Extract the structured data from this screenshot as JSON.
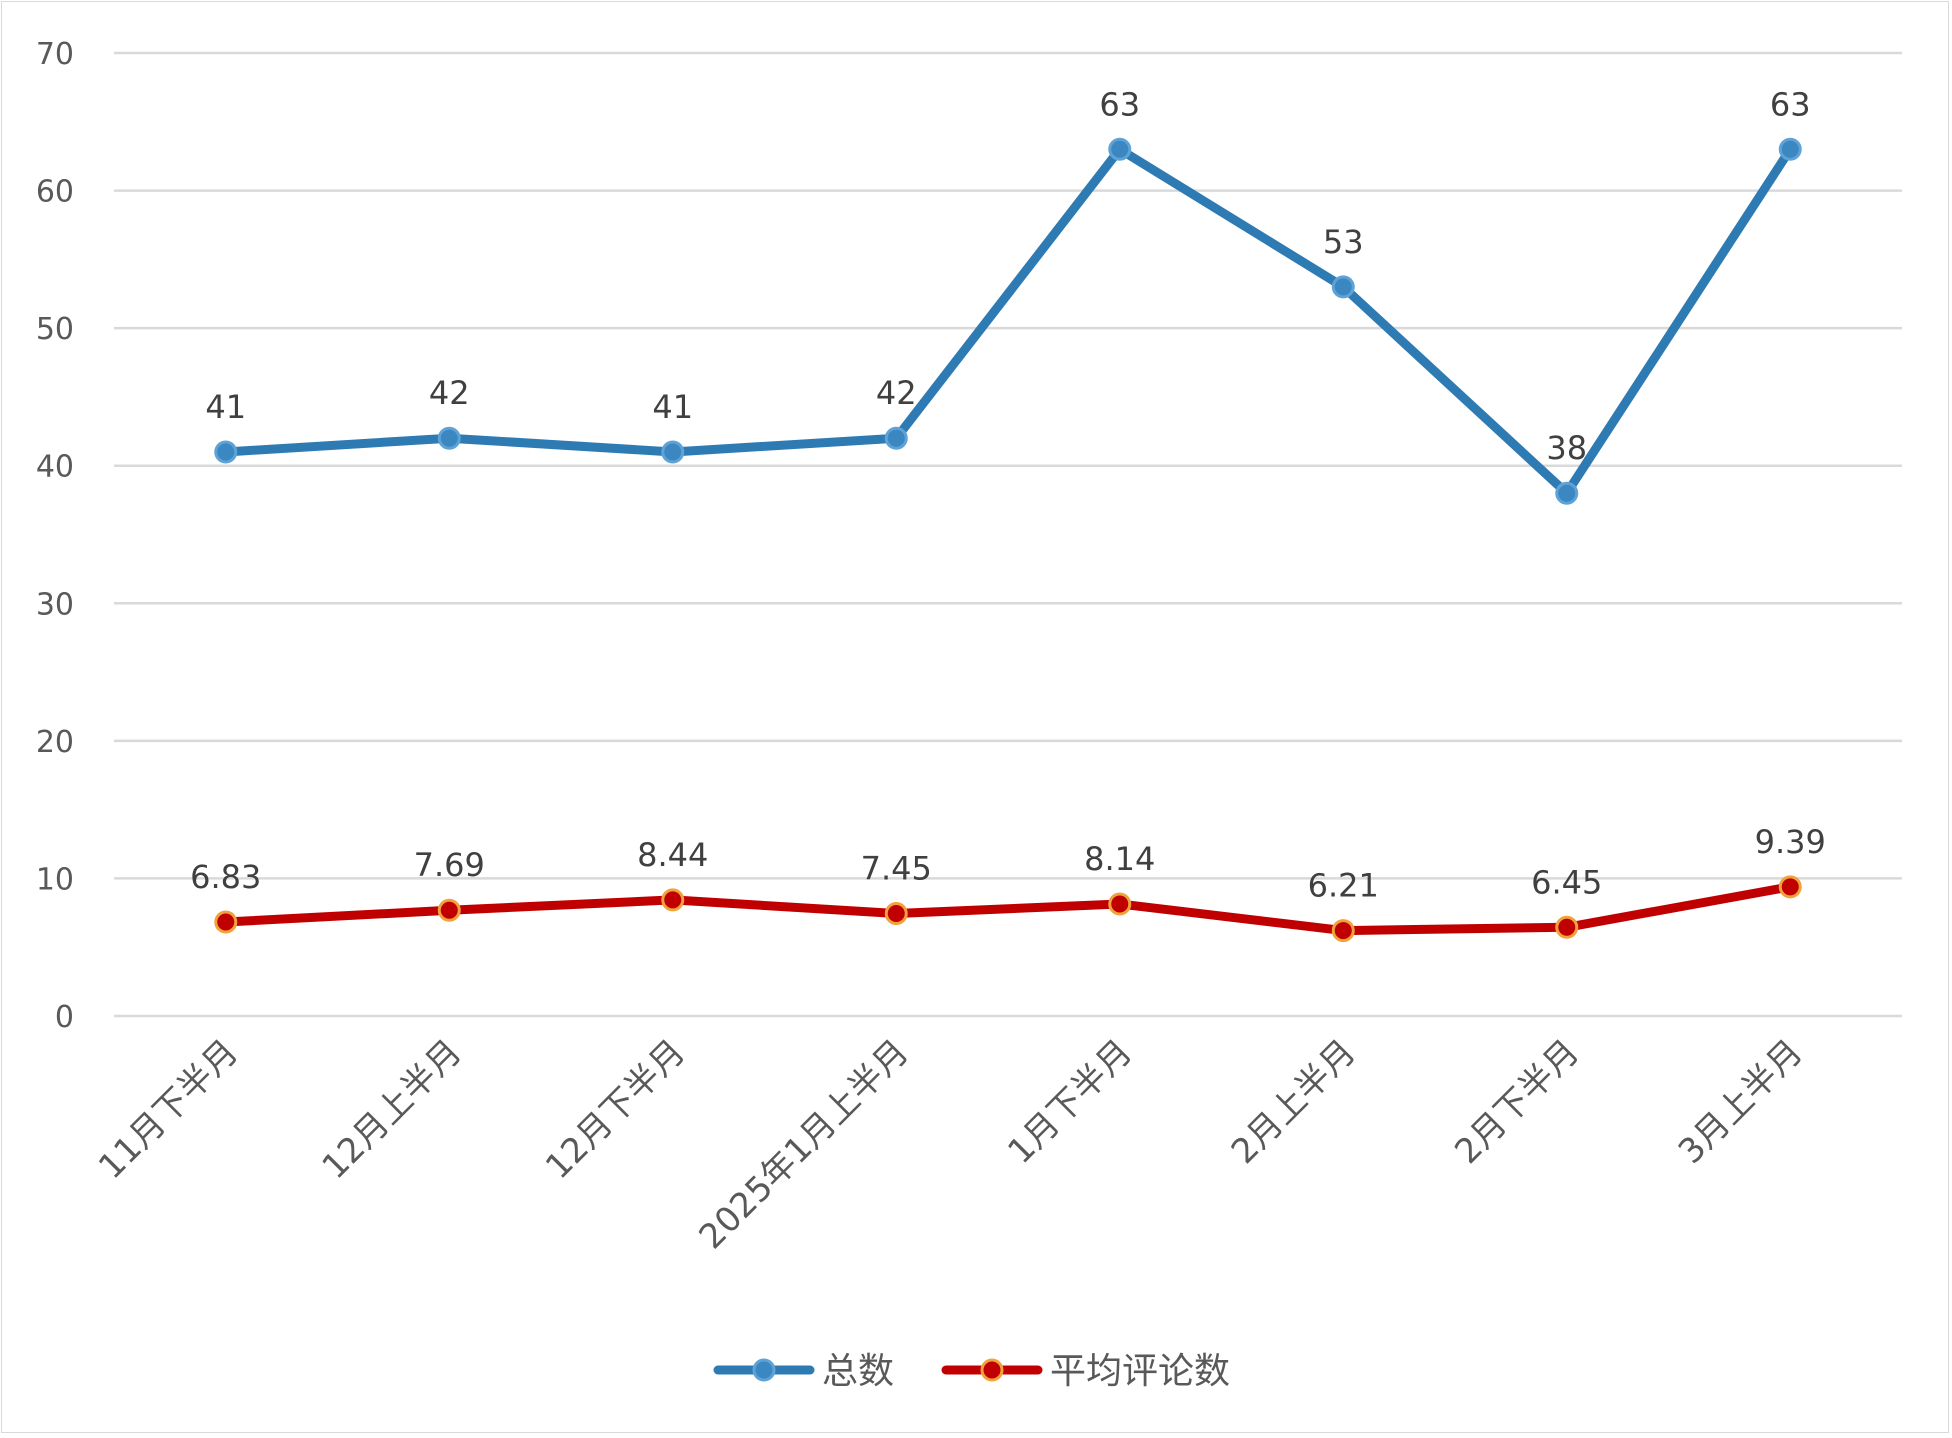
{
  "chart_data": {
    "type": "line",
    "categories": [
      "11月下半月",
      "12月上半月",
      "12月下半月",
      "2025年1月上半月",
      "1月下半月",
      "2月上半月",
      "2月下半月",
      "3月上半月"
    ],
    "series": [
      {
        "name": "总数",
        "values": [
          41,
          42,
          41,
          42,
          63,
          53,
          38,
          63
        ],
        "color": "#2e7bb4",
        "marker_fill": "#3a87c2",
        "marker_stroke": "#5fa3d6"
      },
      {
        "name": "平均评论数",
        "values": [
          6.83,
          7.69,
          8.44,
          7.45,
          8.14,
          6.21,
          6.45,
          9.39
        ],
        "color": "#c00000",
        "marker_fill": "#c00000",
        "marker_stroke": "#f2a23b"
      }
    ],
    "ylim": [
      0,
      70
    ],
    "yticks": [
      0,
      10,
      20,
      30,
      40,
      50,
      60,
      70
    ],
    "grid": true,
    "legend": "bottom",
    "data_labels": true
  }
}
